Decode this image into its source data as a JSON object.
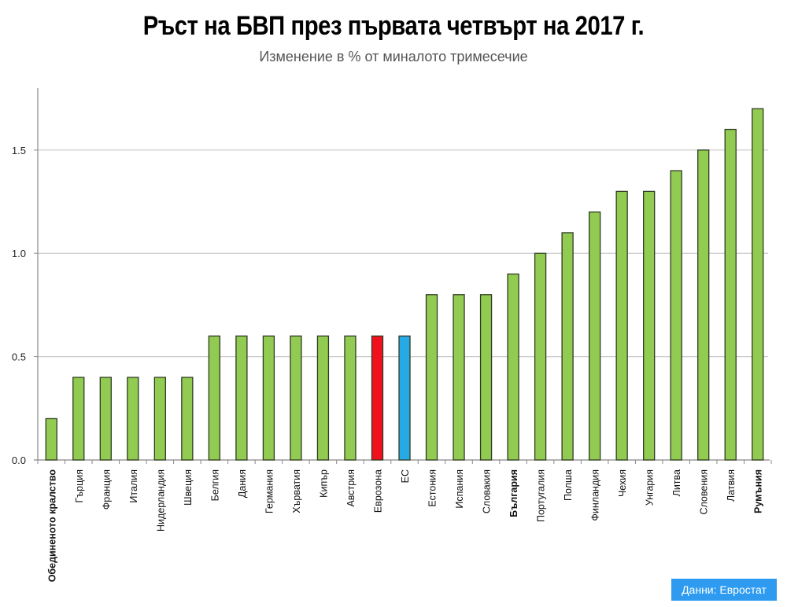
{
  "chart_data": {
    "type": "bar",
    "title": "Ръст на БВП през първата четвърт на 2017 г.",
    "subtitle": "Изменение в % от миналото тримесечие",
    "xlabel": "",
    "ylabel": "",
    "ylim": [
      0,
      1.8
    ],
    "yticks": [
      0.0,
      0.5,
      1.0,
      1.5
    ],
    "ytick_labels": [
      "0.0",
      "0.5",
      "1.0",
      "1.5"
    ],
    "grid": true,
    "legend": null,
    "categories": [
      "Обединеното кралство",
      "Гърция",
      "Франция",
      "Италия",
      "Нидерландия",
      "Швеция",
      "Белгия",
      "Дания",
      "Германия",
      "Хърватия",
      "Кипър",
      "Австрия",
      "Еврозона",
      "ЕС",
      "Естония",
      "Испания",
      "Словакия",
      "България",
      "Португалия",
      "Полша",
      "Финландия",
      "Чехия",
      "Унгария",
      "Литва",
      "Словения",
      "Латвия",
      "Румъния"
    ],
    "values": [
      0.2,
      0.4,
      0.4,
      0.4,
      0.4,
      0.4,
      0.6,
      0.6,
      0.6,
      0.6,
      0.6,
      0.6,
      0.6,
      0.6,
      0.8,
      0.8,
      0.8,
      0.9,
      1.0,
      1.1,
      1.2,
      1.3,
      1.3,
      1.4,
      1.5,
      1.6,
      1.7
    ],
    "bold_categories": [
      "Обединеното кралство",
      "България",
      "Румъния"
    ],
    "bar_colors": {
      "default": "#92cb52",
      "Еврозона": "#f0101e",
      "ЕС": "#27a9e6"
    },
    "bar_outline_color": "#2f3b22",
    "grid_color": "#c8c8c8"
  },
  "source": {
    "label": "Данни: Евростат",
    "color": "#2e9bf0"
  }
}
